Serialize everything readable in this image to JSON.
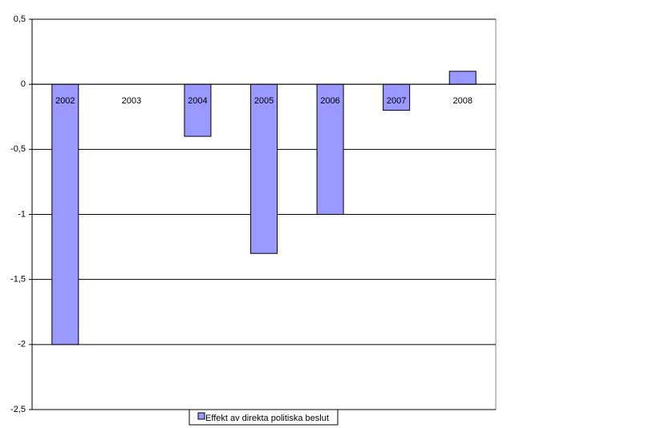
{
  "chart_data": {
    "type": "bar",
    "categories": [
      "2002",
      "2003",
      "2004",
      "2005",
      "2006",
      "2007",
      "2008"
    ],
    "series": [
      {
        "name": "Effekt av direkta politiska beslut",
        "color": "#9999ff",
        "values": [
          -2,
          0,
          -0.4,
          -1.3,
          -1,
          -0.2,
          0.1
        ]
      }
    ],
    "ylim": [
      -2.5,
      0.5
    ],
    "yticks": [
      {
        "value": -2.5,
        "label": "-2,5"
      },
      -2,
      {
        "value": -1.5,
        "label": "-1,5"
      },
      -1,
      {
        "value": -0.5,
        "label": "-0,5"
      },
      0,
      {
        "value": 0.5,
        "label": "0,5"
      }
    ],
    "grid": true
  }
}
